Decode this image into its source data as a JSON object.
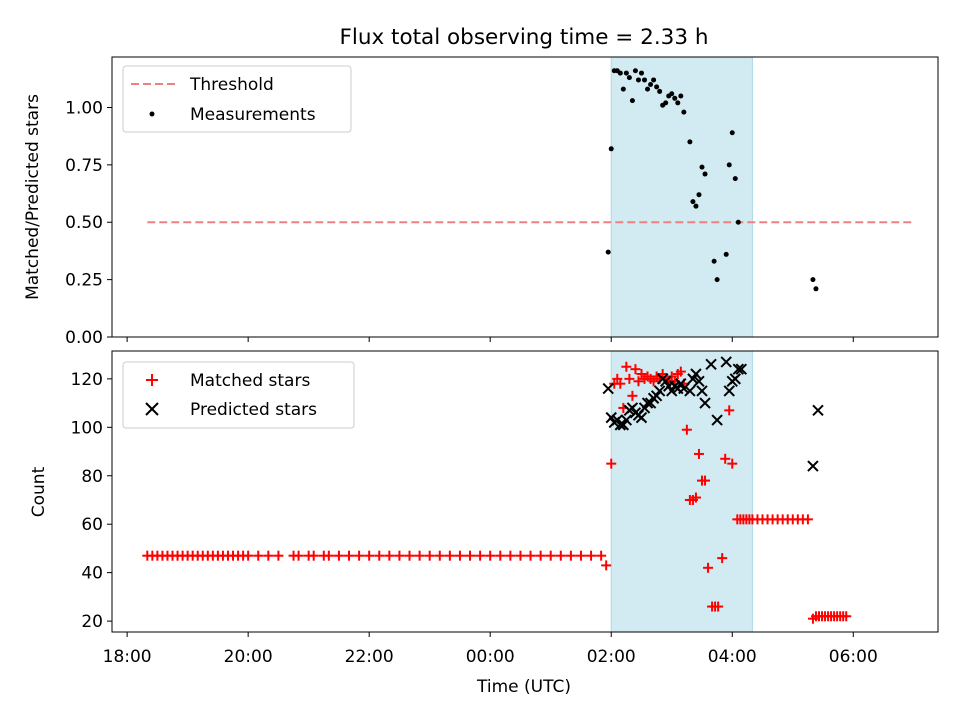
{
  "chart_data": {
    "title": "Flux total observing time = 2.33 h",
    "xlabel": "Time (UTC)",
    "x_ticks": [
      "18:00",
      "20:00",
      "22:00",
      "00:00",
      "02:00",
      "04:00",
      "06:00"
    ],
    "shaded_span": {
      "start": "02:00",
      "end": "04:20",
      "color": "#add8e6"
    },
    "panels": [
      {
        "type": "scatter",
        "ylabel": "Matched/Predicted stars",
        "ylim": [
          0,
          1.22
        ],
        "y_ticks": [
          "0.00",
          "0.25",
          "0.50",
          "0.75",
          "1.00"
        ],
        "y_tick_values": [
          0,
          0.25,
          0.5,
          0.75,
          1.0
        ],
        "legend_position": "upper-left",
        "threshold": {
          "name": "Threshold",
          "value": 0.5,
          "x_start": "18:20",
          "x_end": "07:00",
          "color": "#f08080"
        },
        "series": [
          {
            "name": "Measurements",
            "color": "#000000",
            "marker": "dot",
            "points": [
              [
                "01:57",
                0.37
              ],
              [
                "02:00",
                0.82
              ],
              [
                "02:03",
                1.16
              ],
              [
                "02:06",
                1.16
              ],
              [
                "02:09",
                1.15
              ],
              [
                "02:12",
                1.08
              ],
              [
                "02:15",
                1.15
              ],
              [
                "02:18",
                1.13
              ],
              [
                "02:21",
                1.03
              ],
              [
                "02:24",
                1.16
              ],
              [
                "02:27",
                1.12
              ],
              [
                "02:30",
                1.15
              ],
              [
                "02:33",
                1.12
              ],
              [
                "02:36",
                1.08
              ],
              [
                "02:39",
                1.1
              ],
              [
                "02:42",
                1.12
              ],
              [
                "02:45",
                1.09
              ],
              [
                "02:48",
                1.07
              ],
              [
                "02:51",
                1.01
              ],
              [
                "02:54",
                1.02
              ],
              [
                "02:57",
                1.05
              ],
              [
                "03:00",
                1.06
              ],
              [
                "03:03",
                1.04
              ],
              [
                "03:06",
                1.02
              ],
              [
                "03:09",
                1.05
              ],
              [
                "03:12",
                0.98
              ],
              [
                "03:18",
                0.85
              ],
              [
                "03:21",
                0.59
              ],
              [
                "03:24",
                0.57
              ],
              [
                "03:27",
                0.62
              ],
              [
                "03:30",
                0.74
              ],
              [
                "03:33",
                0.71
              ],
              [
                "03:42",
                0.33
              ],
              [
                "03:45",
                0.25
              ],
              [
                "03:54",
                0.36
              ],
              [
                "03:57",
                0.75
              ],
              [
                "04:00",
                0.89
              ],
              [
                "04:03",
                0.69
              ],
              [
                "04:06",
                0.5
              ],
              [
                "05:20",
                0.25
              ],
              [
                "05:23",
                0.21
              ]
            ]
          }
        ]
      },
      {
        "type": "scatter",
        "ylabel": "Count",
        "ylim": [
          15.5,
          131.5
        ],
        "y_ticks": [
          "20",
          "40",
          "60",
          "80",
          "100",
          "120"
        ],
        "y_tick_values": [
          20,
          40,
          60,
          80,
          100,
          120
        ],
        "legend_position": "upper-left",
        "series": [
          {
            "name": "Matched stars",
            "color": "#ff0000",
            "marker": "plus",
            "points": [
              [
                "18:20",
                47
              ],
              [
                "18:25",
                47
              ],
              [
                "18:30",
                47
              ],
              [
                "18:35",
                47
              ],
              [
                "18:40",
                47
              ],
              [
                "18:45",
                47
              ],
              [
                "18:50",
                47
              ],
              [
                "18:55",
                47
              ],
              [
                "19:00",
                47
              ],
              [
                "19:05",
                47
              ],
              [
                "19:10",
                47
              ],
              [
                "19:15",
                47
              ],
              [
                "19:20",
                47
              ],
              [
                "19:25",
                47
              ],
              [
                "19:30",
                47
              ],
              [
                "19:35",
                47
              ],
              [
                "19:40",
                47
              ],
              [
                "19:45",
                47
              ],
              [
                "19:50",
                47
              ],
              [
                "19:55",
                47
              ],
              [
                "20:00",
                47
              ],
              [
                "20:10",
                47
              ],
              [
                "20:20",
                47
              ],
              [
                "20:30",
                47
              ],
              [
                "20:45",
                47
              ],
              [
                "20:50",
                47
              ],
              [
                "21:00",
                47
              ],
              [
                "21:05",
                47
              ],
              [
                "21:15",
                47
              ],
              [
                "21:20",
                47
              ],
              [
                "21:30",
                47
              ],
              [
                "21:40",
                47
              ],
              [
                "21:50",
                47
              ],
              [
                "22:00",
                47
              ],
              [
                "22:10",
                47
              ],
              [
                "22:20",
                47
              ],
              [
                "22:30",
                47
              ],
              [
                "22:40",
                47
              ],
              [
                "22:50",
                47
              ],
              [
                "23:00",
                47
              ],
              [
                "23:10",
                47
              ],
              [
                "23:20",
                47
              ],
              [
                "23:30",
                47
              ],
              [
                "23:40",
                47
              ],
              [
                "23:50",
                47
              ],
              [
                "00:00",
                47
              ],
              [
                "00:10",
                47
              ],
              [
                "00:20",
                47
              ],
              [
                "00:30",
                47
              ],
              [
                "00:40",
                47
              ],
              [
                "00:50",
                47
              ],
              [
                "01:00",
                47
              ],
              [
                "01:10",
                47
              ],
              [
                "01:20",
                47
              ],
              [
                "01:30",
                47
              ],
              [
                "01:40",
                47
              ],
              [
                "01:50",
                47
              ],
              [
                "01:55",
                43
              ],
              [
                "02:00",
                85
              ],
              [
                "02:03",
                118
              ],
              [
                "02:06",
                120
              ],
              [
                "02:09",
                118
              ],
              [
                "02:12",
                108
              ],
              [
                "02:15",
                125
              ],
              [
                "02:18",
                120
              ],
              [
                "02:21",
                113
              ],
              [
                "02:24",
                124
              ],
              [
                "02:27",
                119
              ],
              [
                "02:30",
                122
              ],
              [
                "02:33",
                120
              ],
              [
                "02:36",
                121
              ],
              [
                "02:39",
                120
              ],
              [
                "02:42",
                119
              ],
              [
                "02:45",
                121
              ],
              [
                "02:48",
                120
              ],
              [
                "02:51",
                122
              ],
              [
                "02:54",
                120
              ],
              [
                "02:57",
                119
              ],
              [
                "03:00",
                121
              ],
              [
                "03:03",
                119
              ],
              [
                "03:06",
                122
              ],
              [
                "03:09",
                123
              ],
              [
                "03:12",
                118
              ],
              [
                "03:15",
                99
              ],
              [
                "03:18",
                70
              ],
              [
                "03:21",
                70
              ],
              [
                "03:24",
                71
              ],
              [
                "03:27",
                89
              ],
              [
                "03:30",
                78
              ],
              [
                "03:33",
                78
              ],
              [
                "03:36",
                42
              ],
              [
                "03:40",
                26
              ],
              [
                "03:43",
                26
              ],
              [
                "03:46",
                26
              ],
              [
                "03:50",
                46
              ],
              [
                "03:53",
                87
              ],
              [
                "03:57",
                107
              ],
              [
                "04:00",
                85
              ],
              [
                "04:05",
                62
              ],
              [
                "04:08",
                62
              ],
              [
                "04:11",
                62
              ],
              [
                "04:14",
                62
              ],
              [
                "04:17",
                62
              ],
              [
                "04:20",
                62
              ],
              [
                "04:25",
                62
              ],
              [
                "04:30",
                62
              ],
              [
                "04:35",
                62
              ],
              [
                "04:40",
                62
              ],
              [
                "04:45",
                62
              ],
              [
                "04:50",
                62
              ],
              [
                "04:55",
                62
              ],
              [
                "05:00",
                62
              ],
              [
                "05:05",
                62
              ],
              [
                "05:10",
                62
              ],
              [
                "05:15",
                62
              ],
              [
                "05:20",
                21
              ],
              [
                "05:23",
                22
              ],
              [
                "05:26",
                22
              ],
              [
                "05:29",
                22
              ],
              [
                "05:32",
                22
              ],
              [
                "05:35",
                22
              ],
              [
                "05:38",
                22
              ],
              [
                "05:41",
                22
              ],
              [
                "05:44",
                22
              ],
              [
                "05:47",
                22
              ],
              [
                "05:50",
                22
              ],
              [
                "05:53",
                22
              ]
            ]
          },
          {
            "name": "Predicted stars",
            "color": "#000000",
            "marker": "x",
            "points": [
              [
                "01:57",
                116
              ],
              [
                "02:00",
                104
              ],
              [
                "02:03",
                102
              ],
              [
                "02:06",
                103
              ],
              [
                "02:09",
                101
              ],
              [
                "02:12",
                101
              ],
              [
                "02:15",
                103
              ],
              [
                "02:18",
                107
              ],
              [
                "02:21",
                108
              ],
              [
                "02:24",
                106
              ],
              [
                "02:27",
                105
              ],
              [
                "02:30",
                104
              ],
              [
                "02:33",
                108
              ],
              [
                "02:36",
                110
              ],
              [
                "02:39",
                110
              ],
              [
                "02:42",
                112
              ],
              [
                "02:45",
                113
              ],
              [
                "02:48",
                115
              ],
              [
                "02:51",
                120
              ],
              [
                "02:54",
                119
              ],
              [
                "02:57",
                117
              ],
              [
                "03:00",
                115
              ],
              [
                "03:03",
                117
              ],
              [
                "03:06",
                116
              ],
              [
                "03:09",
                118
              ],
              [
                "03:12",
                116
              ],
              [
                "03:18",
                115
              ],
              [
                "03:21",
                120
              ],
              [
                "03:24",
                122
              ],
              [
                "03:27",
                119
              ],
              [
                "03:30",
                115
              ],
              [
                "03:33",
                110
              ],
              [
                "03:39",
                126
              ],
              [
                "03:45",
                103
              ],
              [
                "03:54",
                127
              ],
              [
                "03:57",
                115
              ],
              [
                "04:00",
                119
              ],
              [
                "04:03",
                120
              ],
              [
                "04:06",
                124
              ],
              [
                "04:09",
                124
              ],
              [
                "05:20",
                84
              ],
              [
                "05:25",
                107
              ]
            ]
          }
        ]
      }
    ]
  }
}
